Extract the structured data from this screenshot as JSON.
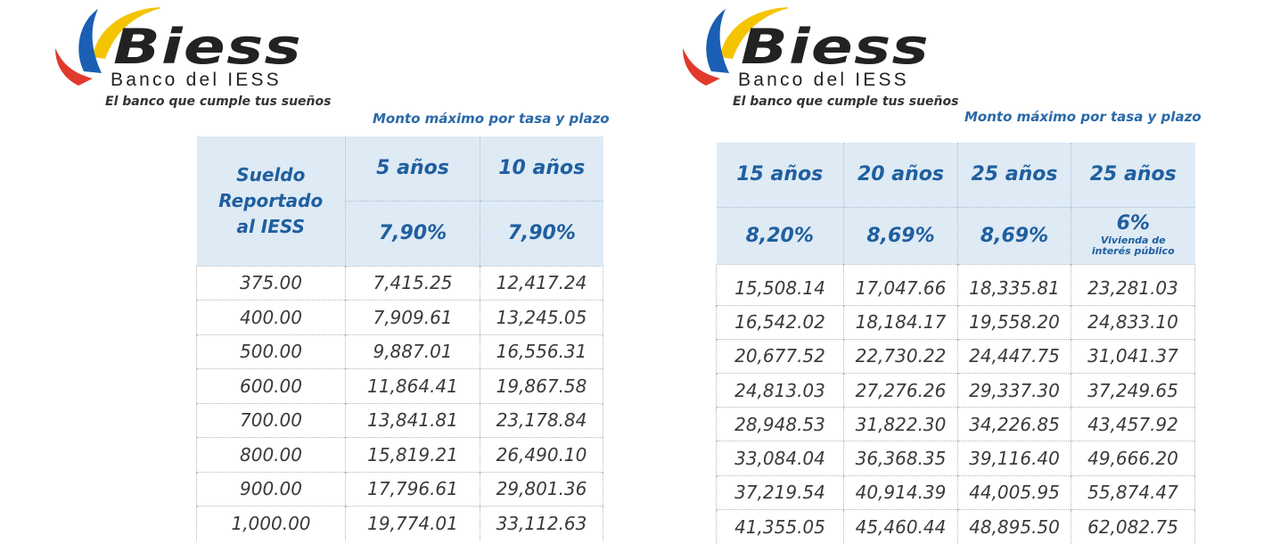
{
  "brand": {
    "name": "Biess",
    "subtitle": "Banco del IESS",
    "tagline": "El banco que cumple tus sueños"
  },
  "caption": "Monto máximo por tasa y plazo",
  "colors": {
    "header_bg": "#deeaf4",
    "header_text": "#1f5fa0",
    "caption_text": "#2a69a8",
    "swoosh_yellow": "#f5c400",
    "swoosh_blue": "#1a5fb4",
    "swoosh_red": "#e03a2c"
  },
  "left_table": {
    "header_first": [
      "Sueldo",
      "Reportado",
      "al IESS"
    ],
    "columns": [
      {
        "term": "5 años",
        "rate": "7,90%"
      },
      {
        "term": "10 años",
        "rate": "7,90%"
      }
    ],
    "rows": [
      [
        "375.00",
        "7,415.25",
        "12,417.24"
      ],
      [
        "400.00",
        "7,909.61",
        "13,245.05"
      ],
      [
        "500.00",
        "9,887.01",
        "16,556.31"
      ],
      [
        "600.00",
        "11,864.41",
        "19,867.58"
      ],
      [
        "700.00",
        "13,841.81",
        "23,178.84"
      ],
      [
        "800.00",
        "15,819.21",
        "26,490.10"
      ],
      [
        "900.00",
        "17,796.61",
        "29,801.36"
      ],
      [
        "1,000.00",
        "19,774.01",
        "33,112.63"
      ]
    ]
  },
  "right_table": {
    "columns": [
      {
        "term": "15 años",
        "rate": "8,20%"
      },
      {
        "term": "20 años",
        "rate": "8,69%"
      },
      {
        "term": "25 años",
        "rate": "8,69%"
      },
      {
        "term": "25 años",
        "rate": "6%",
        "note": [
          "Vivienda de",
          "interés público"
        ]
      }
    ],
    "rows": [
      [
        "15,508.14",
        "17,047.66",
        "18,335.81",
        "23,281.03"
      ],
      [
        "16,542.02",
        "18,184.17",
        "19,558.20",
        "24,833.10"
      ],
      [
        "20,677.52",
        "22,730.22",
        "24,447.75",
        "31,041.37"
      ],
      [
        "24,813.03",
        "27,276.26",
        "29,337.30",
        "37,249.65"
      ],
      [
        "28,948.53",
        "31,822.30",
        "34,226.85",
        "43,457.92"
      ],
      [
        "33,084.04",
        "36,368.35",
        "39,116.40",
        "49,666.20"
      ],
      [
        "37,219.54",
        "40,914.39",
        "44,005.95",
        "55,874.47"
      ],
      [
        "41,355.05",
        "45,460.44",
        "48,895.50",
        "62,082.75"
      ]
    ]
  }
}
